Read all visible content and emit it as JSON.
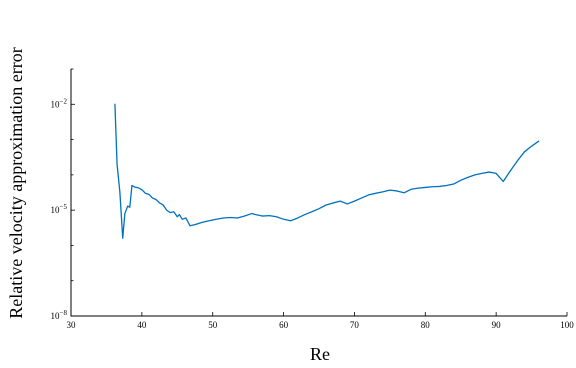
{
  "chart_data": {
    "type": "line",
    "title": "",
    "xlabel": "Re",
    "ylabel": "Relative velocity approximation error",
    "xlim": [
      30,
      100
    ],
    "ylim_log10": [
      -8,
      -1
    ],
    "yscale": "log",
    "grid": false,
    "xticks": [
      {
        "value": 30,
        "label": "30"
      },
      {
        "value": 40,
        "label": "40"
      },
      {
        "value": 50,
        "label": "50"
      },
      {
        "value": 60,
        "label": "60"
      },
      {
        "value": 70,
        "label": "70"
      },
      {
        "value": 80,
        "label": "80"
      },
      {
        "value": 90,
        "label": "90"
      },
      {
        "value": 100,
        "label": "100"
      }
    ],
    "yticks": [
      {
        "exp": -8,
        "base": "10",
        "sup": "−8"
      },
      {
        "exp": -5,
        "base": "10",
        "sup": "−5"
      },
      {
        "exp": -2,
        "base": "10",
        "sup": "−2"
      }
    ],
    "series": [
      {
        "color": "#0072BD",
        "points": [
          [
            36.2,
            0.01
          ],
          [
            36.5,
            0.0002
          ],
          [
            36.9,
            3.2e-05
          ],
          [
            37.3,
            1.6e-06
          ],
          [
            37.6,
            8e-06
          ],
          [
            38.0,
            1.3e-05
          ],
          [
            38.3,
            1.2e-05
          ],
          [
            38.6,
            5e-05
          ],
          [
            39.0,
            4.5e-05
          ],
          [
            39.5,
            4.3e-05
          ],
          [
            40.0,
            3.8e-05
          ],
          [
            40.5,
            3e-05
          ],
          [
            41.0,
            2.8e-05
          ],
          [
            41.5,
            2.2e-05
          ],
          [
            42.0,
            2e-05
          ],
          [
            42.5,
            1.6e-05
          ],
          [
            43.0,
            1.4e-05
          ],
          [
            43.5,
            1e-05
          ],
          [
            44.0,
            8.5e-06
          ],
          [
            44.5,
            9e-06
          ],
          [
            45.0,
            6.5e-06
          ],
          [
            45.3,
            7.5e-06
          ],
          [
            45.7,
            5.5e-06
          ],
          [
            46.2,
            6e-06
          ],
          [
            46.8,
            3.6e-06
          ],
          [
            47.5,
            3.9e-06
          ],
          [
            48.5,
            4.5e-06
          ],
          [
            49.5,
            5e-06
          ],
          [
            50.5,
            5.5e-06
          ],
          [
            51.5,
            6e-06
          ],
          [
            52.5,
            6.2e-06
          ],
          [
            53.5,
            6e-06
          ],
          [
            54.5,
            6.8e-06
          ],
          [
            55.5,
            8e-06
          ],
          [
            56.0,
            7.5e-06
          ],
          [
            57.0,
            6.8e-06
          ],
          [
            58.0,
            7e-06
          ],
          [
            59.0,
            6.5e-06
          ],
          [
            60.0,
            5.5e-06
          ],
          [
            61.0,
            5e-06
          ],
          [
            62.0,
            6e-06
          ],
          [
            63.0,
            7.5e-06
          ],
          [
            64.0,
            9e-06
          ],
          [
            65.0,
            1.1e-05
          ],
          [
            66.0,
            1.4e-05
          ],
          [
            67.0,
            1.6e-05
          ],
          [
            68.0,
            1.8e-05
          ],
          [
            69.0,
            1.5e-05
          ],
          [
            70.0,
            1.8e-05
          ],
          [
            71.0,
            2.2e-05
          ],
          [
            72.0,
            2.7e-05
          ],
          [
            73.0,
            3e-05
          ],
          [
            74.0,
            3.3e-05
          ],
          [
            75.0,
            3.7e-05
          ],
          [
            76.0,
            3.5e-05
          ],
          [
            77.0,
            3.1e-05
          ],
          [
            78.0,
            3.9e-05
          ],
          [
            79.0,
            4.2e-05
          ],
          [
            80.0,
            4.4e-05
          ],
          [
            81.0,
            4.6e-05
          ],
          [
            82.0,
            4.7e-05
          ],
          [
            83.0,
            5e-05
          ],
          [
            84.0,
            5.5e-05
          ],
          [
            85.0,
            7e-05
          ],
          [
            86.0,
            8.5e-05
          ],
          [
            87.0,
            0.0001
          ],
          [
            88.0,
            0.00011
          ],
          [
            89.0,
            0.00012
          ],
          [
            90.0,
            0.00011
          ],
          [
            91.0,
            6.5e-05
          ],
          [
            92.0,
            0.00013
          ],
          [
            93.0,
            0.00025
          ],
          [
            94.0,
            0.00045
          ],
          [
            95.0,
            0.00065
          ],
          [
            96.0,
            0.0009
          ]
        ]
      }
    ]
  }
}
